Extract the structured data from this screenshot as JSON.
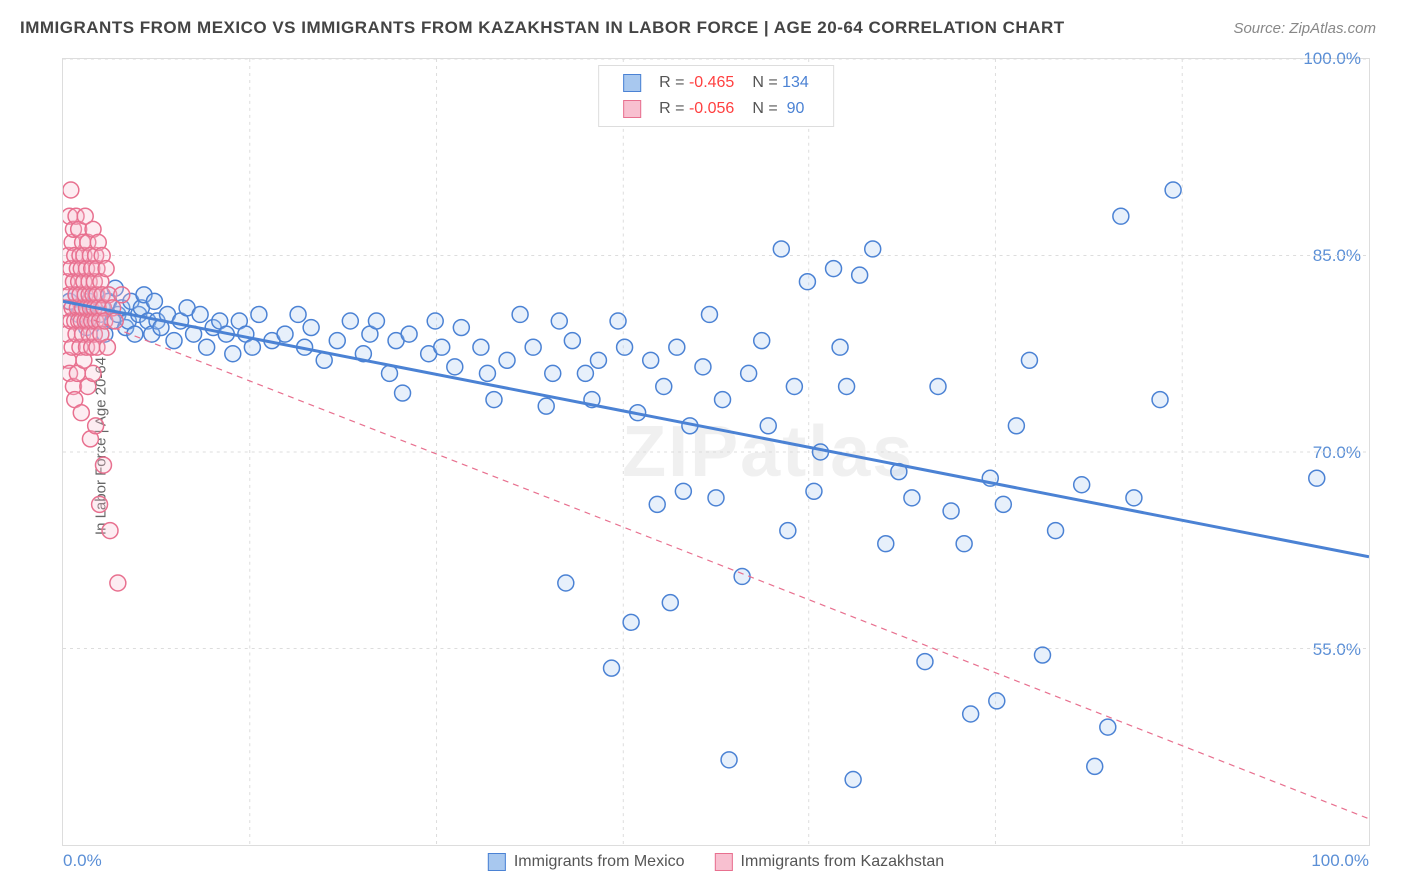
{
  "title": "IMMIGRANTS FROM MEXICO VS IMMIGRANTS FROM KAZAKHSTAN IN LABOR FORCE | AGE 20-64 CORRELATION CHART",
  "source": "Source: ZipAtlas.com",
  "y_label": "In Labor Force | Age 20-64",
  "watermark": "ZIPatlas",
  "chart": {
    "type": "scatter",
    "background_color": "#ffffff",
    "plot_border_color": "#dddddd",
    "grid_color": "#dddddd",
    "tick_color": "#5b8fd6",
    "xlim": [
      0,
      100
    ],
    "ylim": [
      40,
      100
    ],
    "y_ticks": [
      55.0,
      70.0,
      85.0,
      100.0
    ],
    "y_tick_labels": [
      "55.0%",
      "70.0%",
      "85.0%",
      "100.0%"
    ],
    "x_tick_min_label": "0.0%",
    "x_tick_max_label": "100.0%",
    "x_grid_positions": [
      14.3,
      28.6,
      42.9,
      57.1,
      71.4,
      85.7
    ],
    "marker_radius": 8,
    "marker_stroke_width": 1.5,
    "marker_fill_opacity": 0.28,
    "trend_line_width_solid": 3,
    "trend_line_width_dashed": 1.2,
    "trend_dash": "6,5"
  },
  "series": [
    {
      "name": "Immigrants from Mexico",
      "color": "#6ba3e8",
      "stroke": "#4b82d4",
      "fill": "#a8c8ef",
      "line_style": "solid",
      "R": "-0.465",
      "N": "134",
      "trend": {
        "x1": 0,
        "y1": 81.5,
        "x2": 100,
        "y2": 62.0
      },
      "points": [
        [
          0.5,
          81.5
        ],
        [
          1,
          82
        ],
        [
          1.2,
          80.5
        ],
        [
          1.5,
          81
        ],
        [
          1.8,
          79.5
        ],
        [
          2,
          81.5
        ],
        [
          2.2,
          80
        ],
        [
          2.5,
          82
        ],
        [
          2.8,
          80.5
        ],
        [
          3,
          81
        ],
        [
          3.2,
          79
        ],
        [
          3.5,
          81.5
        ],
        [
          3.8,
          80
        ],
        [
          4,
          82.5
        ],
        [
          4.2,
          80.5
        ],
        [
          4.5,
          81
        ],
        [
          4.8,
          79.5
        ],
        [
          5,
          80
        ],
        [
          5.2,
          81.5
        ],
        [
          5.5,
          79
        ],
        [
          5.8,
          80.5
        ],
        [
          6,
          81
        ],
        [
          6.2,
          82
        ],
        [
          6.5,
          80
        ],
        [
          6.8,
          79
        ],
        [
          7,
          81.5
        ],
        [
          7.2,
          80
        ],
        [
          7.5,
          79.5
        ],
        [
          8,
          80.5
        ],
        [
          8.5,
          78.5
        ],
        [
          9,
          80
        ],
        [
          9.5,
          81
        ],
        [
          10,
          79
        ],
        [
          10.5,
          80.5
        ],
        [
          11,
          78
        ],
        [
          11.5,
          79.5
        ],
        [
          12,
          80
        ],
        [
          12.5,
          79
        ],
        [
          13,
          77.5
        ],
        [
          13.5,
          80
        ],
        [
          14,
          79
        ],
        [
          14.5,
          78
        ],
        [
          15,
          80.5
        ],
        [
          16,
          78.5
        ],
        [
          17,
          79
        ],
        [
          18,
          80.5
        ],
        [
          18.5,
          78
        ],
        [
          19,
          79.5
        ],
        [
          20,
          77
        ],
        [
          21,
          78.5
        ],
        [
          22,
          80
        ],
        [
          23,
          77.5
        ],
        [
          23.5,
          79
        ],
        [
          24,
          80
        ],
        [
          25,
          76
        ],
        [
          25.5,
          78.5
        ],
        [
          26,
          74.5
        ],
        [
          26.5,
          79
        ],
        [
          28,
          77.5
        ],
        [
          28.5,
          80
        ],
        [
          29,
          78
        ],
        [
          30,
          76.5
        ],
        [
          30.5,
          79.5
        ],
        [
          32,
          78
        ],
        [
          32.5,
          76
        ],
        [
          33,
          74
        ],
        [
          34,
          77
        ],
        [
          35,
          80.5
        ],
        [
          36,
          78
        ],
        [
          37,
          73.5
        ],
        [
          37.5,
          76
        ],
        [
          38,
          80
        ],
        [
          38.5,
          60
        ],
        [
          39,
          78.5
        ],
        [
          40,
          76
        ],
        [
          40.5,
          74
        ],
        [
          41,
          77
        ],
        [
          42,
          53.5
        ],
        [
          42.5,
          80
        ],
        [
          43,
          78
        ],
        [
          43.5,
          57
        ],
        [
          44,
          73
        ],
        [
          45,
          77
        ],
        [
          45.5,
          66
        ],
        [
          46,
          75
        ],
        [
          46.5,
          58.5
        ],
        [
          47,
          78
        ],
        [
          47.5,
          67
        ],
        [
          48,
          72
        ],
        [
          49,
          76.5
        ],
        [
          49.5,
          80.5
        ],
        [
          50,
          66.5
        ],
        [
          50.5,
          74
        ],
        [
          51,
          46.5
        ],
        [
          52,
          60.5
        ],
        [
          52.5,
          76
        ],
        [
          53.5,
          78.5
        ],
        [
          54,
          72
        ],
        [
          55,
          85.5
        ],
        [
          55.5,
          64
        ],
        [
          56,
          75
        ],
        [
          57,
          83
        ],
        [
          57.5,
          67
        ],
        [
          58,
          70
        ],
        [
          59,
          84
        ],
        [
          59.5,
          78
        ],
        [
          60,
          75
        ],
        [
          60.5,
          45
        ],
        [
          61,
          83.5
        ],
        [
          62,
          85.5
        ],
        [
          63,
          63
        ],
        [
          64,
          68.5
        ],
        [
          65,
          66.5
        ],
        [
          66,
          54
        ],
        [
          67,
          75
        ],
        [
          68,
          65.5
        ],
        [
          69,
          63
        ],
        [
          69.5,
          50
        ],
        [
          71,
          68
        ],
        [
          71.5,
          51
        ],
        [
          72,
          66
        ],
        [
          73,
          72
        ],
        [
          74,
          77
        ],
        [
          75,
          54.5
        ],
        [
          76,
          64
        ],
        [
          78,
          67.5
        ],
        [
          79,
          46
        ],
        [
          80,
          49
        ],
        [
          81,
          88
        ],
        [
          82,
          66.5
        ],
        [
          84,
          74
        ],
        [
          85,
          90
        ],
        [
          96,
          68
        ]
      ]
    },
    {
      "name": "Immigrants from Kazakhstan",
      "color": "#f5a0b8",
      "stroke": "#e8708f",
      "fill": "#f8c0d0",
      "line_style": "dashed",
      "R": "-0.056",
      "N": "90",
      "trend": {
        "x1": 0,
        "y1": 81.0,
        "x2": 100,
        "y2": 42.0
      },
      "points": [
        [
          0.2,
          81
        ],
        [
          0.3,
          83
        ],
        [
          0.3,
          79
        ],
        [
          0.4,
          85
        ],
        [
          0.4,
          77
        ],
        [
          0.5,
          82
        ],
        [
          0.5,
          88
        ],
        [
          0.5,
          76
        ],
        [
          0.6,
          80
        ],
        [
          0.6,
          84
        ],
        [
          0.6,
          90
        ],
        [
          0.7,
          78
        ],
        [
          0.7,
          86
        ],
        [
          0.7,
          81
        ],
        [
          0.8,
          83
        ],
        [
          0.8,
          75
        ],
        [
          0.8,
          87
        ],
        [
          0.9,
          80
        ],
        [
          0.9,
          85
        ],
        [
          0.9,
          74
        ],
        [
          1.0,
          82
        ],
        [
          1.0,
          79
        ],
        [
          1.0,
          88
        ],
        [
          1.1,
          81
        ],
        [
          1.1,
          84
        ],
        [
          1.1,
          76
        ],
        [
          1.2,
          83
        ],
        [
          1.2,
          80
        ],
        [
          1.2,
          87
        ],
        [
          1.3,
          78
        ],
        [
          1.3,
          85
        ],
        [
          1.3,
          82
        ],
        [
          1.4,
          80
        ],
        [
          1.4,
          84
        ],
        [
          1.4,
          73
        ],
        [
          1.5,
          81
        ],
        [
          1.5,
          86
        ],
        [
          1.5,
          79
        ],
        [
          1.6,
          83
        ],
        [
          1.6,
          77
        ],
        [
          1.6,
          85
        ],
        [
          1.7,
          80
        ],
        [
          1.7,
          82
        ],
        [
          1.7,
          88
        ],
        [
          1.8,
          81
        ],
        [
          1.8,
          78
        ],
        [
          1.8,
          84
        ],
        [
          1.9,
          80
        ],
        [
          1.9,
          86
        ],
        [
          1.9,
          75
        ],
        [
          2.0,
          82
        ],
        [
          2.0,
          79
        ],
        [
          2.0,
          83
        ],
        [
          2.1,
          81
        ],
        [
          2.1,
          85
        ],
        [
          2.1,
          71
        ],
        [
          2.2,
          80
        ],
        [
          2.2,
          84
        ],
        [
          2.2,
          78
        ],
        [
          2.3,
          82
        ],
        [
          2.3,
          87
        ],
        [
          2.3,
          76
        ],
        [
          2.4,
          81
        ],
        [
          2.4,
          83
        ],
        [
          2.4,
          79
        ],
        [
          2.5,
          80
        ],
        [
          2.5,
          85
        ],
        [
          2.5,
          72
        ],
        [
          2.6,
          82
        ],
        [
          2.6,
          78
        ],
        [
          2.6,
          84
        ],
        [
          2.7,
          81
        ],
        [
          2.7,
          86
        ],
        [
          2.8,
          80
        ],
        [
          2.8,
          66
        ],
        [
          2.9,
          83
        ],
        [
          2.9,
          79
        ],
        [
          3.0,
          82
        ],
        [
          3.0,
          85
        ],
        [
          3.1,
          81
        ],
        [
          3.1,
          69
        ],
        [
          3.2,
          80
        ],
        [
          3.3,
          84
        ],
        [
          3.4,
          78
        ],
        [
          3.5,
          82
        ],
        [
          3.6,
          64
        ],
        [
          3.8,
          81
        ],
        [
          4.0,
          80
        ],
        [
          4.2,
          60
        ],
        [
          4.5,
          82
        ]
      ]
    }
  ],
  "legend_bottom": [
    {
      "label": "Immigrants from Mexico",
      "fill": "#a8c8ef",
      "stroke": "#4b82d4"
    },
    {
      "label": "Immigrants from Kazakhstan",
      "fill": "#f8c0d0",
      "stroke": "#e8708f"
    }
  ]
}
